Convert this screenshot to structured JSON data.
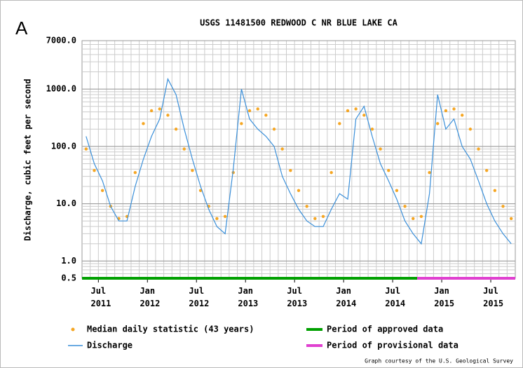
{
  "chart_data": {
    "type": "line",
    "panel_label": "A",
    "title": "USGS 11481500 REDWOOD C NR BLUE LAKE CA",
    "y_label": "Discharge, cubic feet per second",
    "credit": "Graph courtesy of the U.S. Geological Survey",
    "ylog": true,
    "grid": true,
    "minor_grid": true,
    "xlim": [
      "2011-05",
      "2015-09"
    ],
    "ylim": [
      0.5,
      7000
    ],
    "yticks": [
      0.5,
      {
        "value": 1,
        "label": "1.0"
      },
      {
        "value": 10,
        "label": "10.0"
      },
      {
        "value": 100,
        "label": "100.0"
      },
      {
        "value": 1000,
        "label": "1000.0"
      },
      {
        "value": 7000,
        "label": "7000.0"
      }
    ],
    "xticks": [
      {
        "value": "2011-07",
        "label": "Jul 2011"
      },
      {
        "value": "2012-01",
        "label": "Jan 2012"
      },
      {
        "value": "2012-07",
        "label": "Jul 2012"
      },
      {
        "value": "2013-01",
        "label": "Jan 2013"
      },
      {
        "value": "2013-07",
        "label": "Jul 2013"
      },
      {
        "value": "2014-01",
        "label": "Jan 2014"
      },
      {
        "value": "2014-07",
        "label": "Jul 2014"
      },
      {
        "value": "2015-01",
        "label": "Jan 2015"
      },
      {
        "value": "2015-07",
        "label": "Jul 2015"
      }
    ],
    "x": [
      "2011-05",
      "2011-06",
      "2011-07",
      "2011-08",
      "2011-09",
      "2011-10",
      "2011-11",
      "2011-12",
      "2012-01",
      "2012-02",
      "2012-03",
      "2012-04",
      "2012-05",
      "2012-06",
      "2012-07",
      "2012-08",
      "2012-09",
      "2012-10",
      "2012-11",
      "2012-12",
      "2013-01",
      "2013-02",
      "2013-03",
      "2013-04",
      "2013-05",
      "2013-06",
      "2013-07",
      "2013-08",
      "2013-09",
      "2013-10",
      "2013-11",
      "2013-12",
      "2014-01",
      "2014-02",
      "2014-03",
      "2014-04",
      "2014-05",
      "2014-06",
      "2014-07",
      "2014-08",
      "2014-09",
      "2014-10",
      "2014-11",
      "2014-12",
      "2015-01",
      "2015-02",
      "2015-03",
      "2015-04",
      "2015-05",
      "2015-06",
      "2015-07",
      "2015-08",
      "2015-09"
    ],
    "series": [
      {
        "name": "Median daily statistic (43 years)",
        "color": "#f5a623",
        "style": "dots",
        "values": [
          90,
          38,
          17,
          9,
          5.5,
          6,
          35,
          250,
          420,
          450,
          350,
          200,
          90,
          38,
          17,
          9,
          5.5,
          6,
          35,
          250,
          420,
          450,
          350,
          200,
          90,
          38,
          17,
          9,
          5.5,
          6,
          35,
          250,
          420,
          450,
          350,
          200,
          90,
          38,
          17,
          9,
          5.5,
          6,
          35,
          250,
          420,
          450,
          350,
          200,
          90,
          38,
          17,
          9,
          5.5
        ]
      },
      {
        "name": "Discharge",
        "color": "#3a8fd9",
        "style": "line",
        "values": [
          150,
          50,
          25,
          9,
          5,
          5,
          20,
          60,
          150,
          300,
          1500,
          800,
          200,
          60,
          20,
          8,
          4,
          3,
          40,
          1000,
          300,
          200,
          150,
          100,
          30,
          15,
          8,
          5,
          4,
          4,
          8,
          15,
          12,
          300,
          500,
          150,
          50,
          25,
          12,
          5,
          3,
          2,
          15,
          800,
          200,
          300,
          100,
          60,
          25,
          10,
          5,
          3,
          2
        ]
      }
    ],
    "periods": [
      {
        "name": "Period of approved data",
        "color": "#00a000",
        "start": "2011-05",
        "end": "2014-10"
      },
      {
        "name": "Period of provisional data",
        "color": "#e040d0",
        "start": "2014-10",
        "end": "2015-09"
      }
    ]
  }
}
